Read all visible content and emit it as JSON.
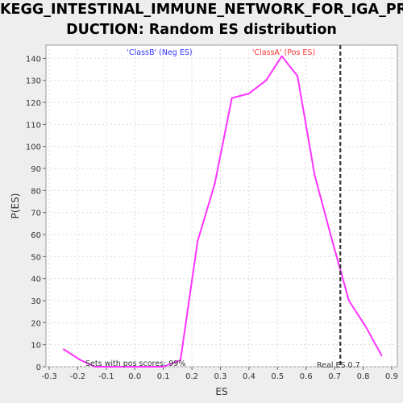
{
  "header": {
    "title_line1": "KEGG_INTESTINAL_IMMUNE_NETWORK_FOR_IGA_PRO",
    "title_line2": "DUCTION: Random ES distribution"
  },
  "chart_data": {
    "type": "line",
    "title": "KEGG_INTESTINAL_IMMUNE_NETWORK_FOR_IGA_PRODUCTION: Random ES distribution",
    "xlabel": "ES",
    "ylabel": "P(ES)",
    "xlim": [
      -0.3,
      0.9
    ],
    "ylim": [
      0,
      146
    ],
    "xticks": [
      -0.3,
      -0.2,
      -0.1,
      0.0,
      0.1,
      0.2,
      0.3,
      0.4,
      0.5,
      0.6,
      0.7,
      0.8,
      0.9
    ],
    "xtick_labels": [
      "-0.3",
      "-0.2",
      "-0.1",
      "0.0",
      "0.1",
      "0.2",
      "0.3",
      "0.4",
      "0.5",
      "0.6",
      "0.7",
      "0.8",
      "0.9"
    ],
    "yticks": [
      0,
      10,
      20,
      30,
      40,
      50,
      60,
      70,
      80,
      90,
      100,
      110,
      120,
      130,
      140
    ],
    "ytick_labels": [
      "0",
      "10",
      "20",
      "30",
      "40",
      "50",
      "60",
      "70",
      "80",
      "90",
      "100",
      "110",
      "120",
      "130",
      "140"
    ],
    "grid": true,
    "series": [
      {
        "color": "#ff33ff",
        "x": [
          -0.25,
          -0.19,
          -0.14,
          -0.08,
          -0.02,
          0.04,
          0.1,
          0.16,
          0.22,
          0.28,
          0.34,
          0.4,
          0.46,
          0.515,
          0.57,
          0.63,
          0.69,
          0.75,
          0.81,
          0.865
        ],
        "y": [
          8,
          3,
          0,
          0,
          0,
          0,
          0,
          3,
          57,
          83,
          122,
          124,
          130,
          141,
          132,
          87,
          58,
          30,
          18,
          5
        ]
      }
    ],
    "threshold": {
      "x": 0.72,
      "color": "#333333",
      "style": "dashed"
    },
    "annotations": {
      "neg_label": "'ClassB' (Neg ES)",
      "neg_color": "#3333ff",
      "pos_label": "'ClassA' (Pos ES)",
      "pos_color": "#ff3333",
      "pos_scores_text": "Sets with pos scores: 99%",
      "real_es_text": "Real ES 0.7"
    }
  }
}
